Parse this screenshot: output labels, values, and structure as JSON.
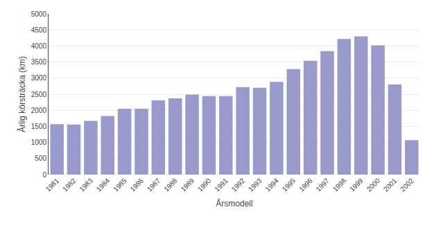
{
  "chart_data": {
    "type": "bar",
    "xlabel": "Årsmodell",
    "ylabel": "Årlig körsträcka (km)",
    "categories": [
      "1981",
      "1982",
      "1983",
      "1984",
      "1985",
      "1986",
      "1987",
      "1988",
      "1989",
      "1990",
      "1991",
      "1992",
      "1993",
      "1994",
      "1995",
      "1996",
      "1997",
      "1998",
      "1999",
      "2000",
      "2001",
      "2002"
    ],
    "values": [
      1570,
      1555,
      1670,
      1820,
      2050,
      2050,
      2310,
      2370,
      2490,
      2440,
      2440,
      2720,
      2700,
      2880,
      3280,
      3540,
      3840,
      4220,
      4300,
      4020,
      2800,
      1070
    ],
    "color": "#9999CC",
    "ylim": [
      0,
      5000
    ],
    "yticks": [
      0,
      500,
      1000,
      1500,
      2000,
      2500,
      3000,
      3500,
      4000,
      4500,
      5000
    ],
    "grid": true
  }
}
